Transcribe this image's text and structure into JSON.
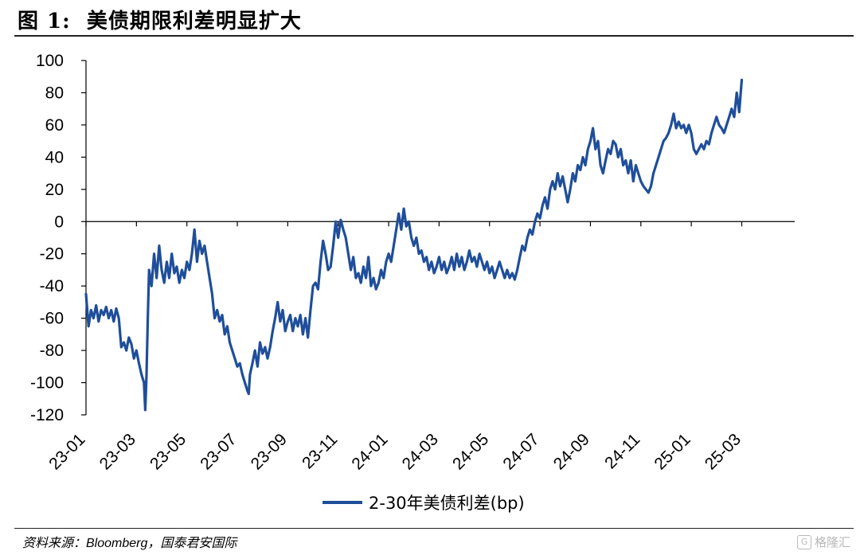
{
  "title": {
    "figure_label": "图 1:",
    "text": "美债期限利差明显扩大"
  },
  "source": "资料来源：Bloomberg，国泰君安国际",
  "watermark": "格隆汇",
  "colors": {
    "series": "#1f4e9a",
    "axis": "#000000"
  },
  "chart_data": {
    "type": "line",
    "title": "美债期限利差明显扩大",
    "xlabel": "",
    "ylabel": "",
    "ylim": [
      -120,
      100
    ],
    "yticks": [
      -120,
      -100,
      -80,
      -60,
      -40,
      -20,
      0,
      20,
      40,
      60,
      80,
      100
    ],
    "xlim": [
      0,
      28.1
    ],
    "xticks": [
      {
        "t": 0,
        "label": "23-01"
      },
      {
        "t": 2,
        "label": "23-03"
      },
      {
        "t": 4,
        "label": "23-05"
      },
      {
        "t": 6,
        "label": "23-07"
      },
      {
        "t": 8,
        "label": "23-09"
      },
      {
        "t": 10,
        "label": "23-11"
      },
      {
        "t": 12,
        "label": "24-01"
      },
      {
        "t": 14,
        "label": "24-03"
      },
      {
        "t": 16,
        "label": "24-05"
      },
      {
        "t": 18,
        "label": "24-07"
      },
      {
        "t": 20,
        "label": "24-09"
      },
      {
        "t": 22,
        "label": "24-11"
      },
      {
        "t": 24,
        "label": "25-01"
      },
      {
        "t": 26,
        "label": "25-03"
      }
    ],
    "legend": "bottom-center",
    "series": [
      {
        "name": "2-30年美债利差(bp)",
        "x_unit": "months since 2023-01",
        "points": [
          [
            0.0,
            -45
          ],
          [
            0.1,
            -65
          ],
          [
            0.2,
            -55
          ],
          [
            0.3,
            -60
          ],
          [
            0.4,
            -52
          ],
          [
            0.5,
            -62
          ],
          [
            0.6,
            -55
          ],
          [
            0.7,
            -58
          ],
          [
            0.8,
            -53
          ],
          [
            0.9,
            -60
          ],
          [
            1.0,
            -55
          ],
          [
            1.1,
            -62
          ],
          [
            1.2,
            -54
          ],
          [
            1.3,
            -60
          ],
          [
            1.4,
            -78
          ],
          [
            1.5,
            -75
          ],
          [
            1.6,
            -80
          ],
          [
            1.7,
            -72
          ],
          [
            1.8,
            -76
          ],
          [
            1.9,
            -85
          ],
          [
            2.0,
            -80
          ],
          [
            2.1,
            -88
          ],
          [
            2.2,
            -95
          ],
          [
            2.3,
            -100
          ],
          [
            2.35,
            -117
          ],
          [
            2.4,
            -95
          ],
          [
            2.45,
            -60
          ],
          [
            2.5,
            -30
          ],
          [
            2.6,
            -40
          ],
          [
            2.7,
            -20
          ],
          [
            2.8,
            -35
          ],
          [
            2.9,
            -15
          ],
          [
            3.0,
            -30
          ],
          [
            3.1,
            -38
          ],
          [
            3.2,
            -25
          ],
          [
            3.3,
            -35
          ],
          [
            3.4,
            -20
          ],
          [
            3.5,
            -32
          ],
          [
            3.6,
            -28
          ],
          [
            3.7,
            -38
          ],
          [
            3.8,
            -30
          ],
          [
            3.9,
            -35
          ],
          [
            4.0,
            -25
          ],
          [
            4.1,
            -30
          ],
          [
            4.2,
            -20
          ],
          [
            4.3,
            -5
          ],
          [
            4.4,
            -25
          ],
          [
            4.5,
            -12
          ],
          [
            4.6,
            -20
          ],
          [
            4.7,
            -15
          ],
          [
            4.8,
            -25
          ],
          [
            4.9,
            -35
          ],
          [
            5.0,
            -45
          ],
          [
            5.1,
            -60
          ],
          [
            5.2,
            -55
          ],
          [
            5.3,
            -62
          ],
          [
            5.4,
            -58
          ],
          [
            5.5,
            -70
          ],
          [
            5.6,
            -65
          ],
          [
            5.7,
            -75
          ],
          [
            5.8,
            -80
          ],
          [
            5.9,
            -85
          ],
          [
            6.0,
            -90
          ],
          [
            6.1,
            -88
          ],
          [
            6.2,
            -95
          ],
          [
            6.3,
            -100
          ],
          [
            6.4,
            -105
          ],
          [
            6.45,
            -107
          ],
          [
            6.5,
            -95
          ],
          [
            6.6,
            -88
          ],
          [
            6.7,
            -80
          ],
          [
            6.8,
            -90
          ],
          [
            6.9,
            -75
          ],
          [
            7.0,
            -82
          ],
          [
            7.1,
            -78
          ],
          [
            7.2,
            -85
          ],
          [
            7.3,
            -78
          ],
          [
            7.4,
            -68
          ],
          [
            7.5,
            -60
          ],
          [
            7.6,
            -50
          ],
          [
            7.7,
            -62
          ],
          [
            7.8,
            -55
          ],
          [
            7.9,
            -68
          ],
          [
            8.0,
            -62
          ],
          [
            8.1,
            -58
          ],
          [
            8.2,
            -68
          ],
          [
            8.3,
            -60
          ],
          [
            8.4,
            -65
          ],
          [
            8.5,
            -58
          ],
          [
            8.6,
            -70
          ],
          [
            8.7,
            -60
          ],
          [
            8.8,
            -72
          ],
          [
            8.9,
            -55
          ],
          [
            9.0,
            -40
          ],
          [
            9.1,
            -38
          ],
          [
            9.2,
            -42
          ],
          [
            9.3,
            -25
          ],
          [
            9.4,
            -12
          ],
          [
            9.5,
            -20
          ],
          [
            9.6,
            -30
          ],
          [
            9.7,
            -28
          ],
          [
            9.8,
            -15
          ],
          [
            9.9,
            0
          ],
          [
            10.0,
            -10
          ],
          [
            10.1,
            1
          ],
          [
            10.2,
            -5
          ],
          [
            10.3,
            -10
          ],
          [
            10.4,
            -20
          ],
          [
            10.5,
            -30
          ],
          [
            10.6,
            -22
          ],
          [
            10.7,
            -35
          ],
          [
            10.8,
            -32
          ],
          [
            10.9,
            -38
          ],
          [
            11.0,
            -28
          ],
          [
            11.1,
            -35
          ],
          [
            11.2,
            -22
          ],
          [
            11.3,
            -40
          ],
          [
            11.4,
            -35
          ],
          [
            11.5,
            -42
          ],
          [
            11.6,
            -38
          ],
          [
            11.7,
            -30
          ],
          [
            11.8,
            -35
          ],
          [
            11.9,
            -25
          ],
          [
            12.0,
            -20
          ],
          [
            12.1,
            -25
          ],
          [
            12.2,
            -15
          ],
          [
            12.3,
            -5
          ],
          [
            12.4,
            5
          ],
          [
            12.5,
            -5
          ],
          [
            12.6,
            8
          ],
          [
            12.7,
            -3
          ],
          [
            12.8,
            0
          ],
          [
            12.9,
            -10
          ],
          [
            13.0,
            -15
          ],
          [
            13.1,
            -10
          ],
          [
            13.2,
            -20
          ],
          [
            13.3,
            -18
          ],
          [
            13.4,
            -25
          ],
          [
            13.5,
            -22
          ],
          [
            13.6,
            -30
          ],
          [
            13.7,
            -25
          ],
          [
            13.8,
            -32
          ],
          [
            13.9,
            -28
          ],
          [
            14.0,
            -22
          ],
          [
            14.1,
            -30
          ],
          [
            14.2,
            -25
          ],
          [
            14.3,
            -32
          ],
          [
            14.4,
            -28
          ],
          [
            14.5,
            -22
          ],
          [
            14.6,
            -30
          ],
          [
            14.7,
            -20
          ],
          [
            14.8,
            -28
          ],
          [
            14.9,
            -22
          ],
          [
            15.0,
            -30
          ],
          [
            15.1,
            -25
          ],
          [
            15.2,
            -18
          ],
          [
            15.3,
            -25
          ],
          [
            15.4,
            -22
          ],
          [
            15.5,
            -28
          ],
          [
            15.6,
            -20
          ],
          [
            15.7,
            -25
          ],
          [
            15.8,
            -30
          ],
          [
            15.9,
            -25
          ],
          [
            16.0,
            -32
          ],
          [
            16.1,
            -28
          ],
          [
            16.2,
            -35
          ],
          [
            16.3,
            -30
          ],
          [
            16.4,
            -25
          ],
          [
            16.5,
            -30
          ],
          [
            16.6,
            -35
          ],
          [
            16.7,
            -30
          ],
          [
            16.8,
            -35
          ],
          [
            16.9,
            -32
          ],
          [
            17.0,
            -36
          ],
          [
            17.1,
            -30
          ],
          [
            17.2,
            -22
          ],
          [
            17.3,
            -15
          ],
          [
            17.4,
            -18
          ],
          [
            17.5,
            -10
          ],
          [
            17.6,
            -5
          ],
          [
            17.7,
            -8
          ],
          [
            17.8,
            0
          ],
          [
            17.9,
            5
          ],
          [
            18.0,
            2
          ],
          [
            18.1,
            10
          ],
          [
            18.2,
            15
          ],
          [
            18.3,
            8
          ],
          [
            18.4,
            20
          ],
          [
            18.5,
            25
          ],
          [
            18.6,
            20
          ],
          [
            18.7,
            30
          ],
          [
            18.8,
            22
          ],
          [
            18.9,
            28
          ],
          [
            19.0,
            20
          ],
          [
            19.1,
            12
          ],
          [
            19.2,
            20
          ],
          [
            19.3,
            30
          ],
          [
            19.4,
            25
          ],
          [
            19.5,
            35
          ],
          [
            19.6,
            32
          ],
          [
            19.7,
            40
          ],
          [
            19.8,
            35
          ],
          [
            19.9,
            45
          ],
          [
            20.0,
            50
          ],
          [
            20.1,
            58
          ],
          [
            20.2,
            45
          ],
          [
            20.3,
            50
          ],
          [
            20.4,
            35
          ],
          [
            20.5,
            30
          ],
          [
            20.6,
            38
          ],
          [
            20.7,
            45
          ],
          [
            20.8,
            42
          ],
          [
            20.9,
            50
          ],
          [
            21.0,
            48
          ],
          [
            21.1,
            40
          ],
          [
            21.2,
            45
          ],
          [
            21.3,
            35
          ],
          [
            21.4,
            38
          ],
          [
            21.5,
            30
          ],
          [
            21.6,
            38
          ],
          [
            21.7,
            25
          ],
          [
            21.8,
            35
          ],
          [
            21.9,
            30
          ],
          [
            22.0,
            25
          ],
          [
            22.1,
            22
          ],
          [
            22.2,
            20
          ],
          [
            22.3,
            18
          ],
          [
            22.4,
            22
          ],
          [
            22.5,
            30
          ],
          [
            22.6,
            35
          ],
          [
            22.7,
            40
          ],
          [
            22.8,
            45
          ],
          [
            22.9,
            50
          ],
          [
            23.0,
            52
          ],
          [
            23.1,
            55
          ],
          [
            23.2,
            60
          ],
          [
            23.3,
            67
          ],
          [
            23.4,
            58
          ],
          [
            23.5,
            62
          ],
          [
            23.6,
            58
          ],
          [
            23.7,
            60
          ],
          [
            23.8,
            55
          ],
          [
            23.9,
            60
          ],
          [
            24.0,
            55
          ],
          [
            24.1,
            45
          ],
          [
            24.2,
            42
          ],
          [
            24.3,
            45
          ],
          [
            24.4,
            48
          ],
          [
            24.5,
            45
          ],
          [
            24.6,
            50
          ],
          [
            24.7,
            48
          ],
          [
            24.8,
            55
          ],
          [
            24.9,
            60
          ],
          [
            25.0,
            65
          ],
          [
            25.1,
            60
          ],
          [
            25.2,
            58
          ],
          [
            25.3,
            55
          ],
          [
            25.4,
            60
          ],
          [
            25.5,
            65
          ],
          [
            25.6,
            70
          ],
          [
            25.7,
            65
          ],
          [
            25.8,
            80
          ],
          [
            25.9,
            68
          ],
          [
            26.0,
            88
          ]
        ]
      }
    ]
  }
}
